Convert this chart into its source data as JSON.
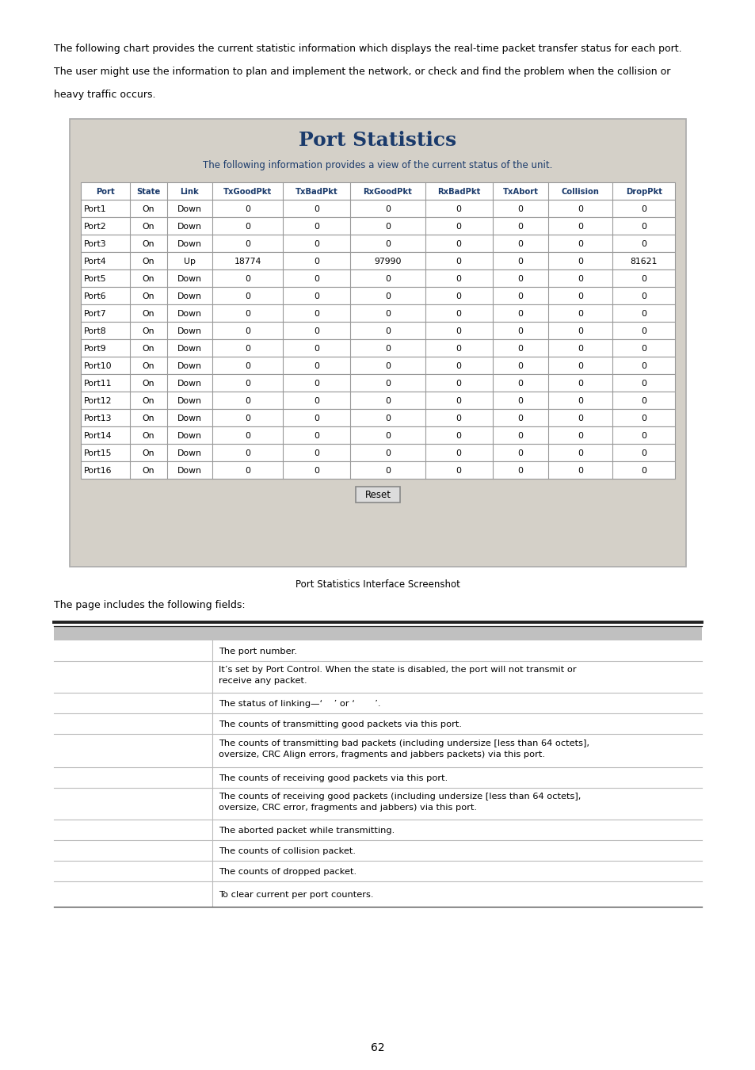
{
  "page_texts": [
    "The following chart provides the current statistic information which displays the real-time packet transfer status for each port.",
    "The user might use the information to plan and implement the network, or check and find the problem when the collision or",
    "heavy traffic occurs."
  ],
  "screenshot_title": "Port Statistics",
  "screenshot_subtitle": "The following information provides a view of the current status of the unit.",
  "table_headers": [
    "Port",
    "State",
    "Link",
    "TxGoodPkt",
    "TxBadPkt",
    "RxGoodPkt",
    "RxBadPkt",
    "TxAbort",
    "Collision",
    "DropPkt"
  ],
  "table_data": [
    [
      "Port1",
      "On",
      "Down",
      "0",
      "0",
      "0",
      "0",
      "0",
      "0",
      "0"
    ],
    [
      "Port2",
      "On",
      "Down",
      "0",
      "0",
      "0",
      "0",
      "0",
      "0",
      "0"
    ],
    [
      "Port3",
      "On",
      "Down",
      "0",
      "0",
      "0",
      "0",
      "0",
      "0",
      "0"
    ],
    [
      "Port4",
      "On",
      "Up",
      "18774",
      "0",
      "97990",
      "0",
      "0",
      "0",
      "81621"
    ],
    [
      "Port5",
      "On",
      "Down",
      "0",
      "0",
      "0",
      "0",
      "0",
      "0",
      "0"
    ],
    [
      "Port6",
      "On",
      "Down",
      "0",
      "0",
      "0",
      "0",
      "0",
      "0",
      "0"
    ],
    [
      "Port7",
      "On",
      "Down",
      "0",
      "0",
      "0",
      "0",
      "0",
      "0",
      "0"
    ],
    [
      "Port8",
      "On",
      "Down",
      "0",
      "0",
      "0",
      "0",
      "0",
      "0",
      "0"
    ],
    [
      "Port9",
      "On",
      "Down",
      "0",
      "0",
      "0",
      "0",
      "0",
      "0",
      "0"
    ],
    [
      "Port10",
      "On",
      "Down",
      "0",
      "0",
      "0",
      "0",
      "0",
      "0",
      "0"
    ],
    [
      "Port11",
      "On",
      "Down",
      "0",
      "0",
      "0",
      "0",
      "0",
      "0",
      "0"
    ],
    [
      "Port12",
      "On",
      "Down",
      "0",
      "0",
      "0",
      "0",
      "0",
      "0",
      "0"
    ],
    [
      "Port13",
      "On",
      "Down",
      "0",
      "0",
      "0",
      "0",
      "0",
      "0",
      "0"
    ],
    [
      "Port14",
      "On",
      "Down",
      "0",
      "0",
      "0",
      "0",
      "0",
      "0",
      "0"
    ],
    [
      "Port15",
      "On",
      "Down",
      "0",
      "0",
      "0",
      "0",
      "0",
      "0",
      "0"
    ],
    [
      "Port16",
      "On",
      "Down",
      "0",
      "0",
      "0",
      "0",
      "0",
      "0",
      "0"
    ]
  ],
  "caption": "Port Statistics Interface Screenshot",
  "fields_label": "The page includes the following fields:",
  "fields_rows": [
    "The port number.",
    "It’s set by Port Control. When the state is disabled, the port will not transmit or\nreceive any packet.",
    "The status of linking—‘    ’ or ‘       ’.",
    "The counts of transmitting good packets via this port.",
    "The counts of transmitting bad packets (including undersize [less than 64 octets],\noversize, CRC Align errors, fragments and jabbers packets) via this port.",
    "The counts of receiving good packets via this port.",
    "The counts of receiving good packets (including undersize [less than 64 octets],\noversize, CRC error, fragments and jabbers) via this port.",
    "The aborted packet while transmitting.",
    "The counts of collision packet.",
    "The counts of dropped packet.",
    "To clear current per port counters."
  ],
  "page_number": "62",
  "bg_color": "#d4d0c8",
  "header_color": "#1a3a6b",
  "table_border_color": "#999999",
  "white": "#ffffff"
}
